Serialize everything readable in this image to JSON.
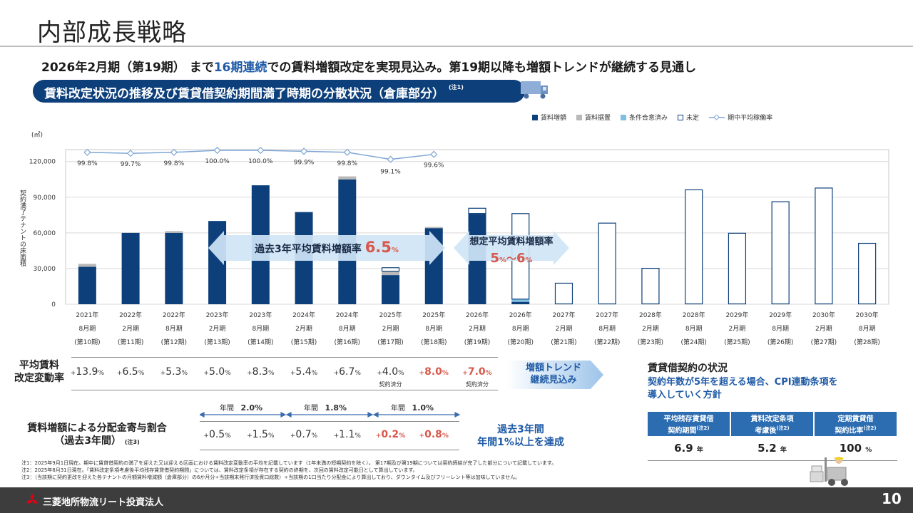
{
  "page": {
    "title": "内部成長戦略",
    "headline_pre": "2026年2月期（第19期） まで",
    "headline_hl": "16期連続",
    "headline_post": "での賃料増額改定を実現見込み。第19期以降も増額トレンドが継続する見通し",
    "section_title": "賃料改定状況の推移及び賃貸借契約期間満了時期の分散状況（倉庫部分）",
    "section_note": "(注1)",
    "page_number": "10",
    "company": "三菱地所物流リート投資法人"
  },
  "legend": [
    {
      "label": "賃料増額",
      "color": "#0d3f7a",
      "style": "fill"
    },
    {
      "label": "賃料据置",
      "color": "#b9b9b9",
      "style": "fill"
    },
    {
      "label": "条件合意済み",
      "color": "#7fbfe3",
      "style": "fill"
    },
    {
      "label": "未定",
      "color": "#0d3f7a",
      "style": "outline"
    },
    {
      "label": "期中平均稼働率",
      "color": "#7ea6d6",
      "style": "line"
    }
  ],
  "axis": {
    "unit": "(㎡)",
    "ylabel": "契約満了テナントの床面積",
    "yticks": [
      "120,000",
      "90,000",
      "60,000",
      "30,000",
      "0"
    ]
  },
  "chart_data": {
    "type": "bar",
    "ylim": [
      0,
      130000
    ],
    "categories": [
      [
        "2021年",
        "8月期",
        "(第10期)"
      ],
      [
        "2022年",
        "2月期",
        "(第11期)"
      ],
      [
        "2022年",
        "8月期",
        "(第12期)"
      ],
      [
        "2023年",
        "2月期",
        "(第13期)"
      ],
      [
        "2023年",
        "8月期",
        "(第14期)"
      ],
      [
        "2024年",
        "2月期",
        "(第15期)"
      ],
      [
        "2024年",
        "8月期",
        "(第16期)"
      ],
      [
        "2025年",
        "2月期",
        "(第17期)"
      ],
      [
        "2025年",
        "8月期",
        "(第18期)"
      ],
      [
        "2026年",
        "2月期",
        "(第19期)"
      ],
      [
        "2026年",
        "8月期",
        "(第20期)"
      ],
      [
        "2027年",
        "2月期",
        "(第21期)"
      ],
      [
        "2027年",
        "8月期",
        "(第22期)"
      ],
      [
        "2028年",
        "2月期",
        "(第23期)"
      ],
      [
        "2028年",
        "8月期",
        "(第24期)"
      ],
      [
        "2029年",
        "2月期",
        "(第25期)"
      ],
      [
        "2029年",
        "8月期",
        "(第26期)"
      ],
      [
        "2030年",
        "2月期",
        "(第27期)"
      ],
      [
        "2030年",
        "8月期",
        "(第28期)"
      ]
    ],
    "series": [
      {
        "name": "賃料増額",
        "values": [
          31500,
          60000,
          60000,
          70000,
          100000,
          77500,
          105000,
          24500,
          64000,
          76000,
          2000,
          0,
          0,
          0,
          0,
          0,
          0,
          0,
          0
        ]
      },
      {
        "name": "賃料据置",
        "values": [
          2500,
          0,
          1500,
          0,
          0,
          0,
          2500,
          3000,
          1000,
          0,
          0,
          0,
          0,
          0,
          0,
          0,
          0,
          0,
          0
        ]
      },
      {
        "name": "条件合意済み",
        "values": [
          0,
          0,
          0,
          0,
          0,
          0,
          0,
          0,
          0,
          0,
          2000,
          0,
          0,
          0,
          0,
          0,
          0,
          0,
          0
        ]
      },
      {
        "name": "未定",
        "values": [
          0,
          0,
          0,
          0,
          0,
          0,
          0,
          3500,
          0,
          5000,
          72500,
          18000,
          68500,
          30500,
          96500,
          60000,
          86500,
          98000,
          51500
        ]
      }
    ],
    "occupancy": {
      "name": "期中平均稼働率",
      "values": [
        99.8,
        99.7,
        99.8,
        100.0,
        100.0,
        99.9,
        99.8,
        99.1,
        99.6
      ],
      "labels": [
        "99.8%",
        "99.7%",
        "99.8%",
        "100.0%",
        "100.0%",
        "99.9%",
        "99.8%",
        "99.1%",
        "99.6%"
      ]
    }
  },
  "callouts": {
    "past_label": "過去3年平均賃料増額率",
    "past_value": "6.5",
    "past_unit": "%",
    "future_label": "想定平均賃料増額率",
    "future_v1": "5",
    "future_v2": "6",
    "future_unit": "%",
    "future_sep": "～"
  },
  "rent_change": {
    "label_line1": "平均賃料",
    "label_line2": "改定変動率",
    "values": [
      {
        "sign": "+",
        "num": "13.9",
        "pct": "%",
        "red": false,
        "note": ""
      },
      {
        "sign": "+",
        "num": "6.5",
        "pct": "%",
        "red": false,
        "note": ""
      },
      {
        "sign": "+",
        "num": "5.3",
        "pct": "%",
        "red": false,
        "note": ""
      },
      {
        "sign": "+",
        "num": "5.0",
        "pct": "%",
        "red": false,
        "note": ""
      },
      {
        "sign": "+",
        "num": "8.3",
        "pct": "%",
        "red": false,
        "note": ""
      },
      {
        "sign": "+",
        "num": "5.4",
        "pct": "%",
        "red": false,
        "note": ""
      },
      {
        "sign": "+",
        "num": "6.7",
        "pct": "%",
        "red": false,
        "note": ""
      },
      {
        "sign": "+",
        "num": "4.0",
        "pct": "%",
        "red": false,
        "note": "契約済分"
      },
      {
        "sign": "+",
        "num": "8.0",
        "pct": "%",
        "red": true,
        "note": ""
      },
      {
        "sign": "+",
        "num": "7.0",
        "pct": "%",
        "red": true,
        "note": "契約済分"
      }
    ],
    "trend_line1": "増額トレンド",
    "trend_line2": "継続見込み"
  },
  "distribution": {
    "label_line1": "賃料増額による分配金寄与割合",
    "label_line2": "（過去3年間）",
    "label_note": "(注3)",
    "spans": [
      {
        "label": "年間",
        "value": "2.0%"
      },
      {
        "label": "年間",
        "value": "1.8%"
      },
      {
        "label": "年間",
        "value": "1.0%"
      }
    ],
    "values": [
      {
        "sign": "+",
        "num": "0.5",
        "pct": "%",
        "red": false
      },
      {
        "sign": "+",
        "num": "1.5",
        "pct": "%",
        "red": false
      },
      {
        "sign": "+",
        "num": "0.7",
        "pct": "%",
        "red": false
      },
      {
        "sign": "+",
        "num": "1.1",
        "pct": "%",
        "red": false
      },
      {
        "sign": "+",
        "num": "0.2",
        "pct": "%",
        "red": true
      },
      {
        "sign": "+",
        "num": "0.8",
        "pct": "%",
        "red": true
      }
    ],
    "realized_line1": "過去3年間",
    "realized_line2": "年間1%以上を達成"
  },
  "lease": {
    "title": "賃貸借契約の状況",
    "sub_line1": "契約年数が5年を超える場合、CPI連動条項を",
    "sub_line2": "導入していく方針",
    "headers": [
      {
        "line1": "平均残存賃貸借",
        "line2": "契約期間",
        "note": "(注2)"
      },
      {
        "line1": "賃料改定条項",
        "line2": "考慮後",
        "note": "(注2)"
      },
      {
        "line1": "定期賃貸借",
        "line2": "契約比率",
        "note": "(注2)"
      }
    ],
    "values": [
      {
        "num": "6.9",
        "unit": "年"
      },
      {
        "num": "5.2",
        "unit": "年"
      },
      {
        "num": "100",
        "unit": "%"
      }
    ]
  },
  "notes": [
    "注1：2025年9月1日現在。期中に賃貸借契約の満了を迎えた又は迎える区画における賃料改定変動率の平均を記載しています（1年未満の短期契約を除く）。 第17期及び第19期については契約締結が完了した部分について記載しています。",
    "注2：2025年8月31日現在。「賃料改定条項考慮後平均残存賃貸借契約期間」については、賃料改定条項が存在する契約の終期を、次回の賃料改定可能日として算出しています。",
    "注3：（当該期に契約更改を迎えた各テナントの月額賃料増減額（倉庫部分）の6か月分÷当該期末発行済投資口総数）÷当該期の1口当たり分配金により算出しており、ダウンタイム及びフリーレント等は加味していません。"
  ]
}
